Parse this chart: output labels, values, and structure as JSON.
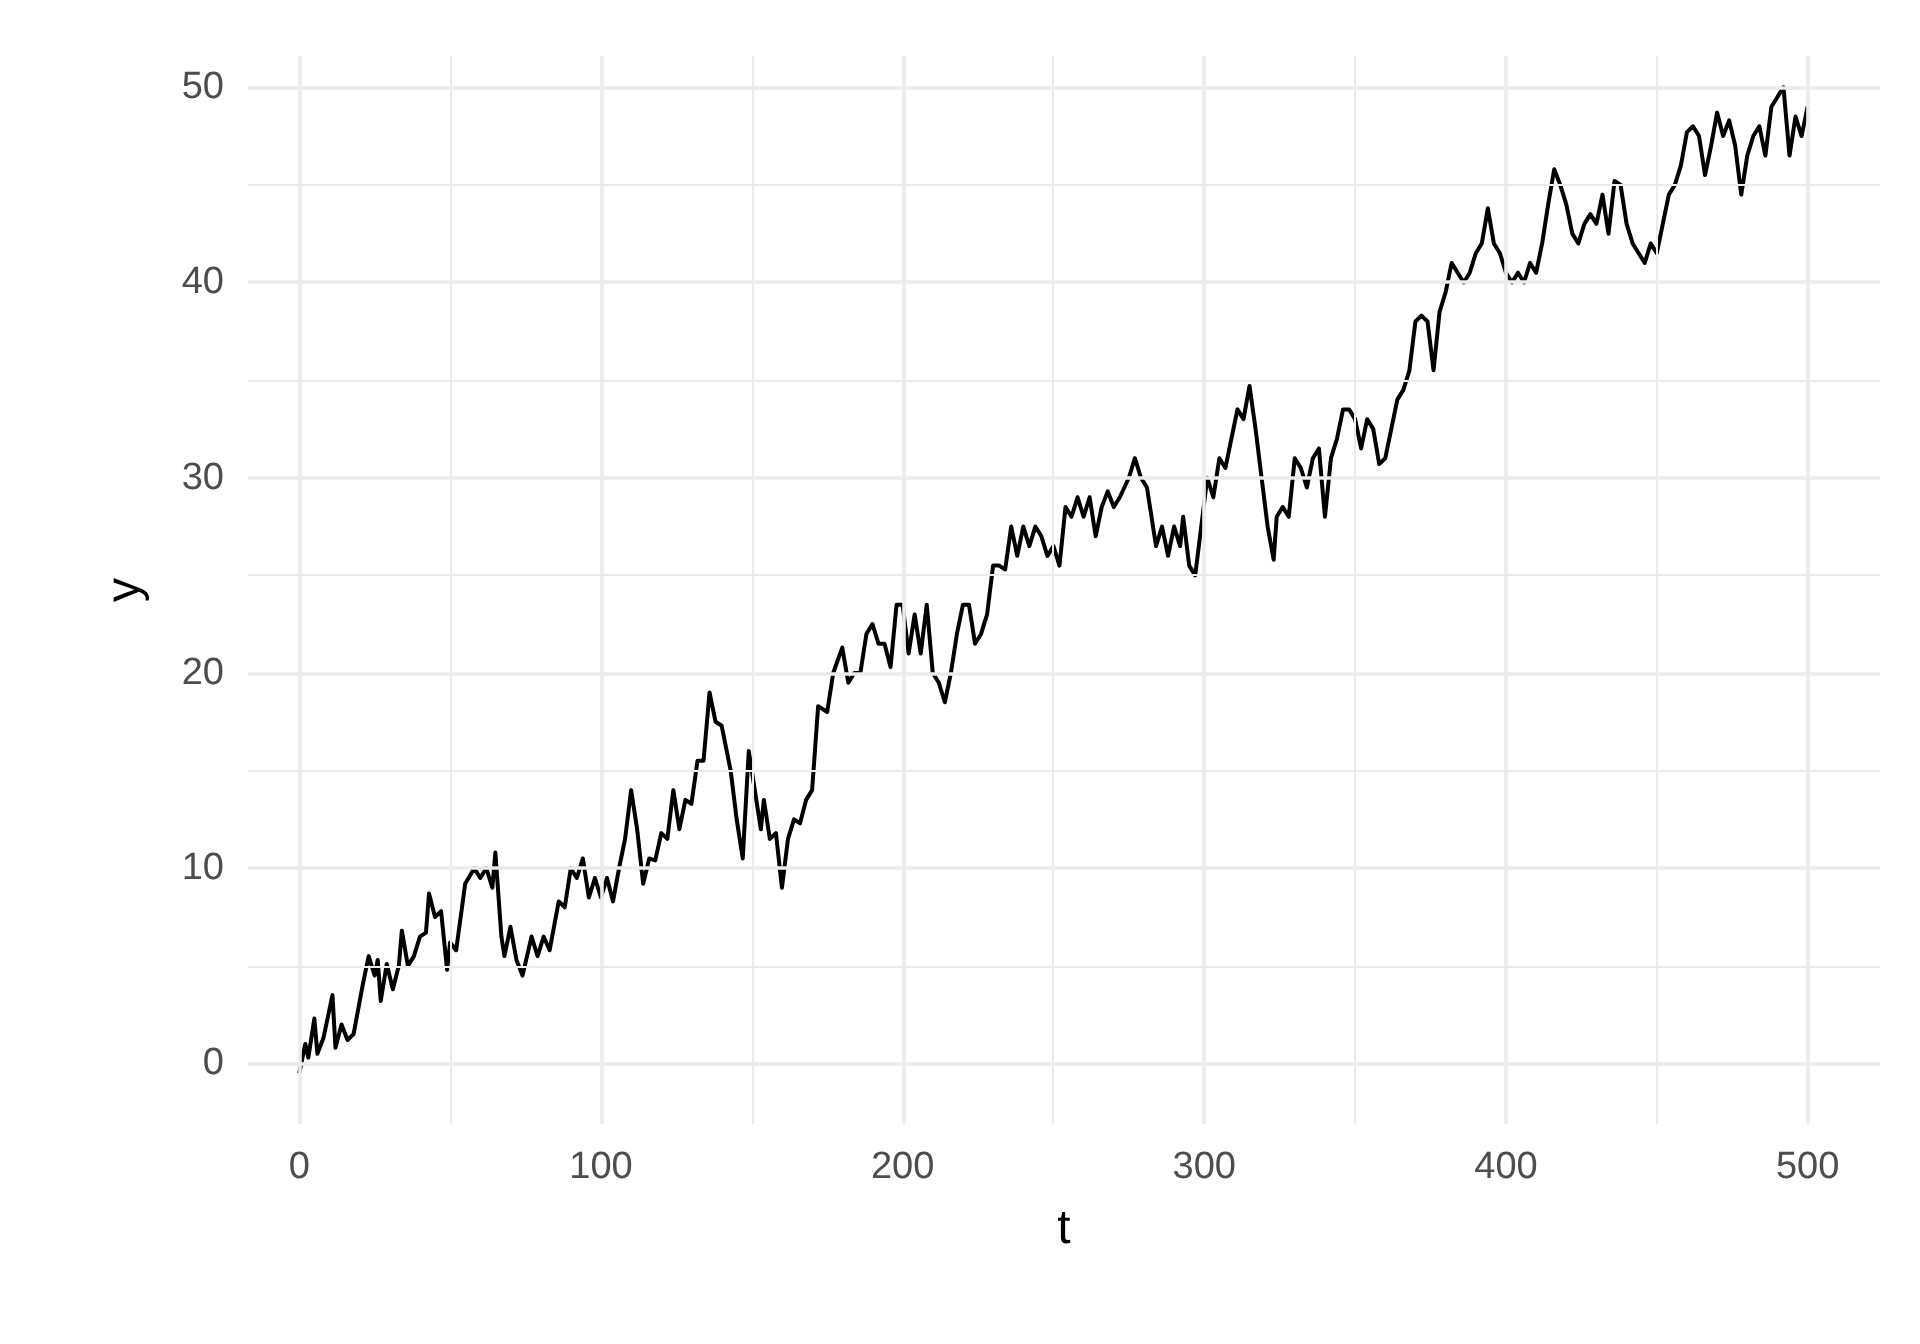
{
  "chart_data": {
    "type": "line",
    "xlabel": "t",
    "ylabel": "y",
    "xlim": [
      -17,
      524
    ],
    "ylim": [
      -3.1,
      51.6
    ],
    "xticks": [
      0,
      {
        "value": 50,
        "label": null
      },
      100,
      {
        "value": 150,
        "label": null
      },
      200,
      {
        "value": 250,
        "label": null
      },
      300,
      {
        "value": 350,
        "label": null
      },
      400,
      {
        "value": 450,
        "label": null
      },
      500
    ],
    "yticks": [
      0,
      {
        "value": 5,
        "label": null
      },
      10,
      {
        "value": 15,
        "label": null
      },
      20,
      {
        "value": 25,
        "label": null
      },
      30,
      {
        "value": 35,
        "label": null
      },
      40,
      {
        "value": 45,
        "label": null
      },
      50
    ],
    "grid": true,
    "marker": "none",
    "line_style": "solid",
    "series": [
      {
        "color": "#000000",
        "x": [
          0,
          2,
          3,
          5,
          6,
          8,
          11,
          12,
          14,
          16,
          18,
          21,
          23,
          25,
          26,
          27,
          29,
          31,
          33,
          34,
          36,
          38,
          40,
          42,
          43,
          45,
          47,
          49,
          50,
          52,
          55,
          58,
          60,
          62,
          64,
          65,
          67,
          68,
          70,
          72,
          74,
          77,
          79,
          81,
          83,
          86,
          88,
          90,
          92,
          94,
          96,
          98,
          100,
          102,
          104,
          106,
          108,
          110,
          112,
          114,
          116,
          118,
          120,
          122,
          124,
          126,
          128,
          130,
          132,
          134,
          136,
          138,
          140,
          143,
          145,
          147,
          149,
          151,
          153,
          154,
          156,
          158,
          160,
          162,
          164,
          166,
          168,
          170,
          172,
          175,
          177,
          180,
          182,
          184,
          186,
          188,
          190,
          192,
          194,
          196,
          198,
          200,
          202,
          204,
          206,
          208,
          210,
          212,
          214,
          216,
          218,
          220,
          222,
          224,
          226,
          228,
          230,
          232,
          234,
          236,
          238,
          240,
          242,
          244,
          246,
          248,
          250,
          252,
          254,
          256,
          258,
          260,
          262,
          264,
          266,
          268,
          270,
          272,
          275,
          277,
          279,
          281,
          283,
          284,
          286,
          288,
          290,
          292,
          293,
          295,
          297,
          299,
          301,
          303,
          305,
          307,
          309,
          311,
          313,
          315,
          317,
          319,
          321,
          323,
          324,
          326,
          328,
          330,
          332,
          334,
          336,
          338,
          340,
          342,
          344,
          346,
          348,
          350,
          352,
          354,
          356,
          358,
          360,
          362,
          364,
          366,
          368,
          370,
          372,
          374,
          376,
          378,
          380,
          382,
          384,
          386,
          388,
          390,
          392,
          394,
          396,
          398,
          400,
          402,
          404,
          406,
          408,
          410,
          412,
          414,
          416,
          418,
          420,
          422,
          424,
          426,
          428,
          430,
          432,
          434,
          436,
          438,
          440,
          442,
          444,
          446,
          448,
          450,
          452,
          454,
          456,
          458,
          460,
          462,
          464,
          466,
          468,
          470,
          472,
          474,
          476,
          478,
          480,
          482,
          484,
          486,
          488,
          490,
          492,
          494,
          496,
          498,
          500
        ],
        "values": [
          -0.5,
          1,
          0.3,
          2.3,
          0.5,
          1.3,
          3.5,
          0.8,
          2,
          1.2,
          1.5,
          4,
          5.5,
          4.5,
          5.3,
          3.2,
          5.1,
          3.8,
          5,
          6.8,
          5,
          5.5,
          6.5,
          6.7,
          8.7,
          7.5,
          7.8,
          4.8,
          6.2,
          5.8,
          9.2,
          10,
          9.5,
          10,
          9,
          10.8,
          6.5,
          5.5,
          7,
          5.3,
          4.5,
          6.5,
          5.5,
          6.5,
          5.8,
          8.3,
          8,
          10,
          9.5,
          10.5,
          8.5,
          9.5,
          8.5,
          9.5,
          8.3,
          10,
          11.5,
          14,
          12,
          9.2,
          10.5,
          10.4,
          11.8,
          11.5,
          14,
          12,
          13.5,
          13.3,
          15.5,
          15.5,
          19,
          17.5,
          17.3,
          15,
          12.5,
          10.5,
          16,
          14,
          12,
          13.5,
          11.5,
          11.8,
          9,
          11.5,
          12.5,
          12.3,
          13.5,
          14,
          18.3,
          18,
          20,
          21.3,
          19.5,
          20,
          20,
          22,
          22.5,
          21.5,
          21.5,
          20.3,
          23.5,
          23.5,
          21,
          23,
          21,
          23.5,
          20,
          19.5,
          18.5,
          20,
          22,
          23.5,
          23.5,
          21.5,
          22,
          23,
          25.5,
          25.5,
          25.3,
          27.5,
          26,
          27.5,
          26.5,
          27.5,
          27,
          26,
          26.5,
          25.5,
          28.5,
          28,
          29,
          28,
          29,
          27,
          28.5,
          29.3,
          28.5,
          29,
          30,
          31,
          30,
          29.5,
          27.5,
          26.5,
          27.5,
          26,
          27.5,
          26.5,
          28,
          25.5,
          25,
          27.5,
          30,
          29,
          31,
          30.5,
          32,
          33.5,
          33,
          34.7,
          32.5,
          30,
          27.5,
          25.8,
          28,
          28.5,
          28,
          31,
          30.5,
          29.5,
          31,
          31.5,
          28,
          31,
          32,
          33.5,
          33.5,
          33,
          31.5,
          33,
          32.5,
          30.7,
          31,
          32.5,
          34,
          34.5,
          35.5,
          38,
          38.3,
          38,
          35.5,
          38.5,
          39.5,
          41,
          40.5,
          40,
          40.5,
          41.5,
          42,
          43.8,
          42,
          41.5,
          40.5,
          40,
          40.5,
          40,
          41,
          40.5,
          42,
          44,
          45.8,
          45,
          44,
          42.5,
          42,
          43,
          43.5,
          43,
          44.5,
          42.5,
          45.2,
          45,
          43,
          42,
          41.5,
          41,
          42,
          41.5,
          43,
          44.5,
          45,
          46,
          47.7,
          48,
          47.5,
          45.5,
          47,
          48.7,
          47.5,
          48.3,
          47,
          44.5,
          46.5,
          47.5,
          48,
          46.5,
          49,
          49.5,
          50,
          46.5,
          48.5,
          47.5,
          49
        ]
      }
    ]
  }
}
